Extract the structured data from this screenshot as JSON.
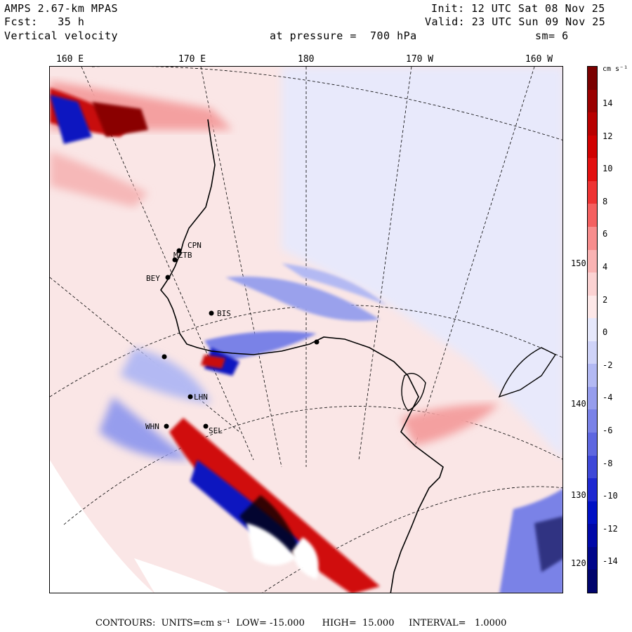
{
  "header": {
    "line1_left": "AMPS 2.67-km MPAS",
    "line2_left": "Fcst:   35 h",
    "line3_left": "Vertical velocity",
    "line1_right": "Init: 12 UTC Sat 08 Nov 25",
    "line2_right": "Valid: 23 UTC Sun 09 Nov 25",
    "pressure": "at pressure =  700 hPa",
    "smooth": "sm= 6"
  },
  "axes": {
    "lon_labels": [
      "160 E",
      "170 E",
      "180",
      "170 W",
      "160 W"
    ],
    "lat_labels": [
      "150 W",
      "140 W",
      "130 W",
      "120 W"
    ]
  },
  "colorbar": {
    "units": "cm s⁻¹",
    "tick_labels": [
      "14",
      "12",
      "10",
      "8",
      "6",
      "4",
      "2",
      "0",
      "-2",
      "-4",
      "-6",
      "-8",
      "-10",
      "-12",
      "-14"
    ],
    "colors": [
      "#7a0000",
      "#9a0000",
      "#b80000",
      "#d00000",
      "#e21010",
      "#ee3333",
      "#f46060",
      "#f78d8d",
      "#f9b3b3",
      "#fbd2d2",
      "#fde8e8",
      "#e6e8fb",
      "#cfd3f8",
      "#b3b9f3",
      "#969ded",
      "#7a82e7",
      "#5e67e0",
      "#3e48d8",
      "#1e28d0",
      "#0010c4",
      "#0008a8",
      "#00068a",
      "#00046c"
    ]
  },
  "stations": [
    "CPN",
    "MZTB",
    "BEY",
    "BIS",
    "SEL",
    "WHN",
    "LHN"
  ],
  "footer": "CONTOURS:  UNITS=cm s⁻¹  LOW= -15.000      HIGH=  15.000     INTERVAL=   1.0000"
}
